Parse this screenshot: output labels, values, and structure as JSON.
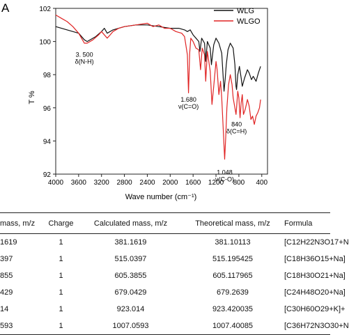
{
  "panel_label": "A",
  "chart_data": {
    "type": "line",
    "title": "",
    "xlabel": "Wave number (cm⁻¹)",
    "ylabel": "T %",
    "xlim": [
      4000,
      300
    ],
    "ylim": [
      92,
      102
    ],
    "x_ticks": [
      4000,
      3600,
      3200,
      2800,
      2400,
      2000,
      1600,
      1200,
      800,
      400
    ],
    "y_ticks": [
      92,
      94,
      96,
      98,
      100,
      102
    ],
    "legend_position": "top-right",
    "series": [
      {
        "name": "WLG",
        "color": "#111111",
        "points": [
          [
            4000,
            100.9
          ],
          [
            3800,
            100.7
          ],
          [
            3600,
            100.5
          ],
          [
            3500,
            100.1
          ],
          [
            3450,
            100.0
          ],
          [
            3300,
            100.3
          ],
          [
            3200,
            100.6
          ],
          [
            3150,
            100.8
          ],
          [
            3100,
            100.5
          ],
          [
            3000,
            100.7
          ],
          [
            2800,
            100.9
          ],
          [
            2600,
            101.0
          ],
          [
            2400,
            101.0
          ],
          [
            2200,
            100.9
          ],
          [
            2000,
            100.8
          ],
          [
            1850,
            100.8
          ],
          [
            1750,
            100.7
          ],
          [
            1700,
            100.6
          ],
          [
            1650,
            100.7
          ],
          [
            1600,
            100.4
          ],
          [
            1550,
            100.2
          ],
          [
            1500,
            100.0
          ],
          [
            1480,
            99.4
          ],
          [
            1450,
            100.2
          ],
          [
            1400,
            99.9
          ],
          [
            1380,
            98.8
          ],
          [
            1350,
            100.0
          ],
          [
            1300,
            99.6
          ],
          [
            1280,
            98.6
          ],
          [
            1240,
            99.8
          ],
          [
            1200,
            100.2
          ],
          [
            1150,
            99.9
          ],
          [
            1100,
            99.3
          ],
          [
            1060,
            97.0
          ],
          [
            1040,
            97.7
          ],
          [
            1020,
            98.6
          ],
          [
            990,
            99.5
          ],
          [
            950,
            99.9
          ],
          [
            900,
            99.6
          ],
          [
            870,
            98.6
          ],
          [
            850,
            97.3
          ],
          [
            840,
            97.1
          ],
          [
            820,
            98.0
          ],
          [
            790,
            98.5
          ],
          [
            760,
            97.8
          ],
          [
            740,
            97.3
          ],
          [
            700,
            97.8
          ],
          [
            650,
            98.3
          ],
          [
            620,
            98.1
          ],
          [
            580,
            97.7
          ],
          [
            550,
            97.9
          ],
          [
            500,
            97.6
          ],
          [
            460,
            98.1
          ],
          [
            420,
            98.5
          ]
        ]
      },
      {
        "name": "WLGO",
        "color": "#e02424",
        "points": [
          [
            4000,
            101.6
          ],
          [
            3900,
            101.4
          ],
          [
            3800,
            101.2
          ],
          [
            3700,
            100.9
          ],
          [
            3600,
            100.5
          ],
          [
            3550,
            100.2
          ],
          [
            3500,
            99.9
          ],
          [
            3450,
            99.9
          ],
          [
            3350,
            100.1
          ],
          [
            3250,
            100.4
          ],
          [
            3200,
            100.6
          ],
          [
            3100,
            100.2
          ],
          [
            3050,
            100.4
          ],
          [
            3000,
            100.6
          ],
          [
            2900,
            100.8
          ],
          [
            2800,
            100.9
          ],
          [
            2600,
            101.0
          ],
          [
            2400,
            101.1
          ],
          [
            2300,
            100.9
          ],
          [
            2200,
            101.0
          ],
          [
            2100,
            100.8
          ],
          [
            2000,
            100.8
          ],
          [
            1900,
            100.6
          ],
          [
            1800,
            100.5
          ],
          [
            1750,
            100.3
          ],
          [
            1700,
            99.2
          ],
          [
            1680,
            96.9
          ],
          [
            1660,
            99.3
          ],
          [
            1640,
            100.2
          ],
          [
            1600,
            100.0
          ],
          [
            1550,
            99.6
          ],
          [
            1500,
            99.5
          ],
          [
            1470,
            98.3
          ],
          [
            1440,
            99.6
          ],
          [
            1400,
            99.2
          ],
          [
            1380,
            97.6
          ],
          [
            1350,
            99.4
          ],
          [
            1300,
            98.2
          ],
          [
            1270,
            96.2
          ],
          [
            1240,
            97.3
          ],
          [
            1200,
            98.8
          ],
          [
            1180,
            98.3
          ],
          [
            1150,
            96.8
          ],
          [
            1120,
            97.6
          ],
          [
            1100,
            96.6
          ],
          [
            1070,
            94.5
          ],
          [
            1048,
            92.9
          ],
          [
            1030,
            94.2
          ],
          [
            1010,
            96.0
          ],
          [
            980,
            97.4
          ],
          [
            950,
            98.0
          ],
          [
            920,
            97.4
          ],
          [
            900,
            96.6
          ],
          [
            870,
            96.0
          ],
          [
            850,
            95.6
          ],
          [
            840,
            96.0
          ],
          [
            820,
            97.0
          ],
          [
            800,
            96.6
          ],
          [
            780,
            95.4
          ],
          [
            760,
            96.3
          ],
          [
            740,
            96.8
          ],
          [
            720,
            95.6
          ],
          [
            690,
            95.9
          ],
          [
            650,
            96.5
          ],
          [
            620,
            96.1
          ],
          [
            590,
            95.3
          ],
          [
            560,
            95.5
          ],
          [
            530,
            95.0
          ],
          [
            500,
            95.5
          ],
          [
            470,
            95.7
          ],
          [
            440,
            96.0
          ],
          [
            420,
            96.5
          ]
        ]
      }
    ],
    "annotations": [
      {
        "text1": "3. 500",
        "text2": "δ(N-H)",
        "x": 3500,
        "y": 99.5
      },
      {
        "text1": "1.680",
        "text2": "ν(C=O)",
        "x": 1680,
        "y": 96.8
      },
      {
        "text1": "840",
        "text2": "δ(C=H)",
        "x": 840,
        "y": 95.3
      },
      {
        "text1": "1.048",
        "text2": "ν(C-O)",
        "x": 1048,
        "y": 92.4
      }
    ]
  },
  "table": {
    "headers": [
      "mass, m/z",
      "Charge",
      "Calculated mass, m/z",
      "Theoretical mass, m/z",
      "Formula"
    ],
    "rows": [
      [
        "1619",
        "1",
        "381.1619",
        "381.10113",
        "[C12H22N3O17+N"
      ],
      [
        "397",
        "1",
        "515.0397",
        "515.195425",
        "[C18H36O15+Na]"
      ],
      [
        "855",
        "1",
        "605.3855",
        "605.117965",
        "[C18H30O21+Na]"
      ],
      [
        "429",
        "1",
        "679.0429",
        "679.2639",
        "[C24H48O20+Na]"
      ],
      [
        "14",
        "1",
        "923.014",
        "923.420035",
        "[C30H60O29+K]+"
      ],
      [
        "593",
        "1",
        "1007.0593",
        "1007.40085",
        "[C36H72N3O30+N"
      ]
    ]
  }
}
